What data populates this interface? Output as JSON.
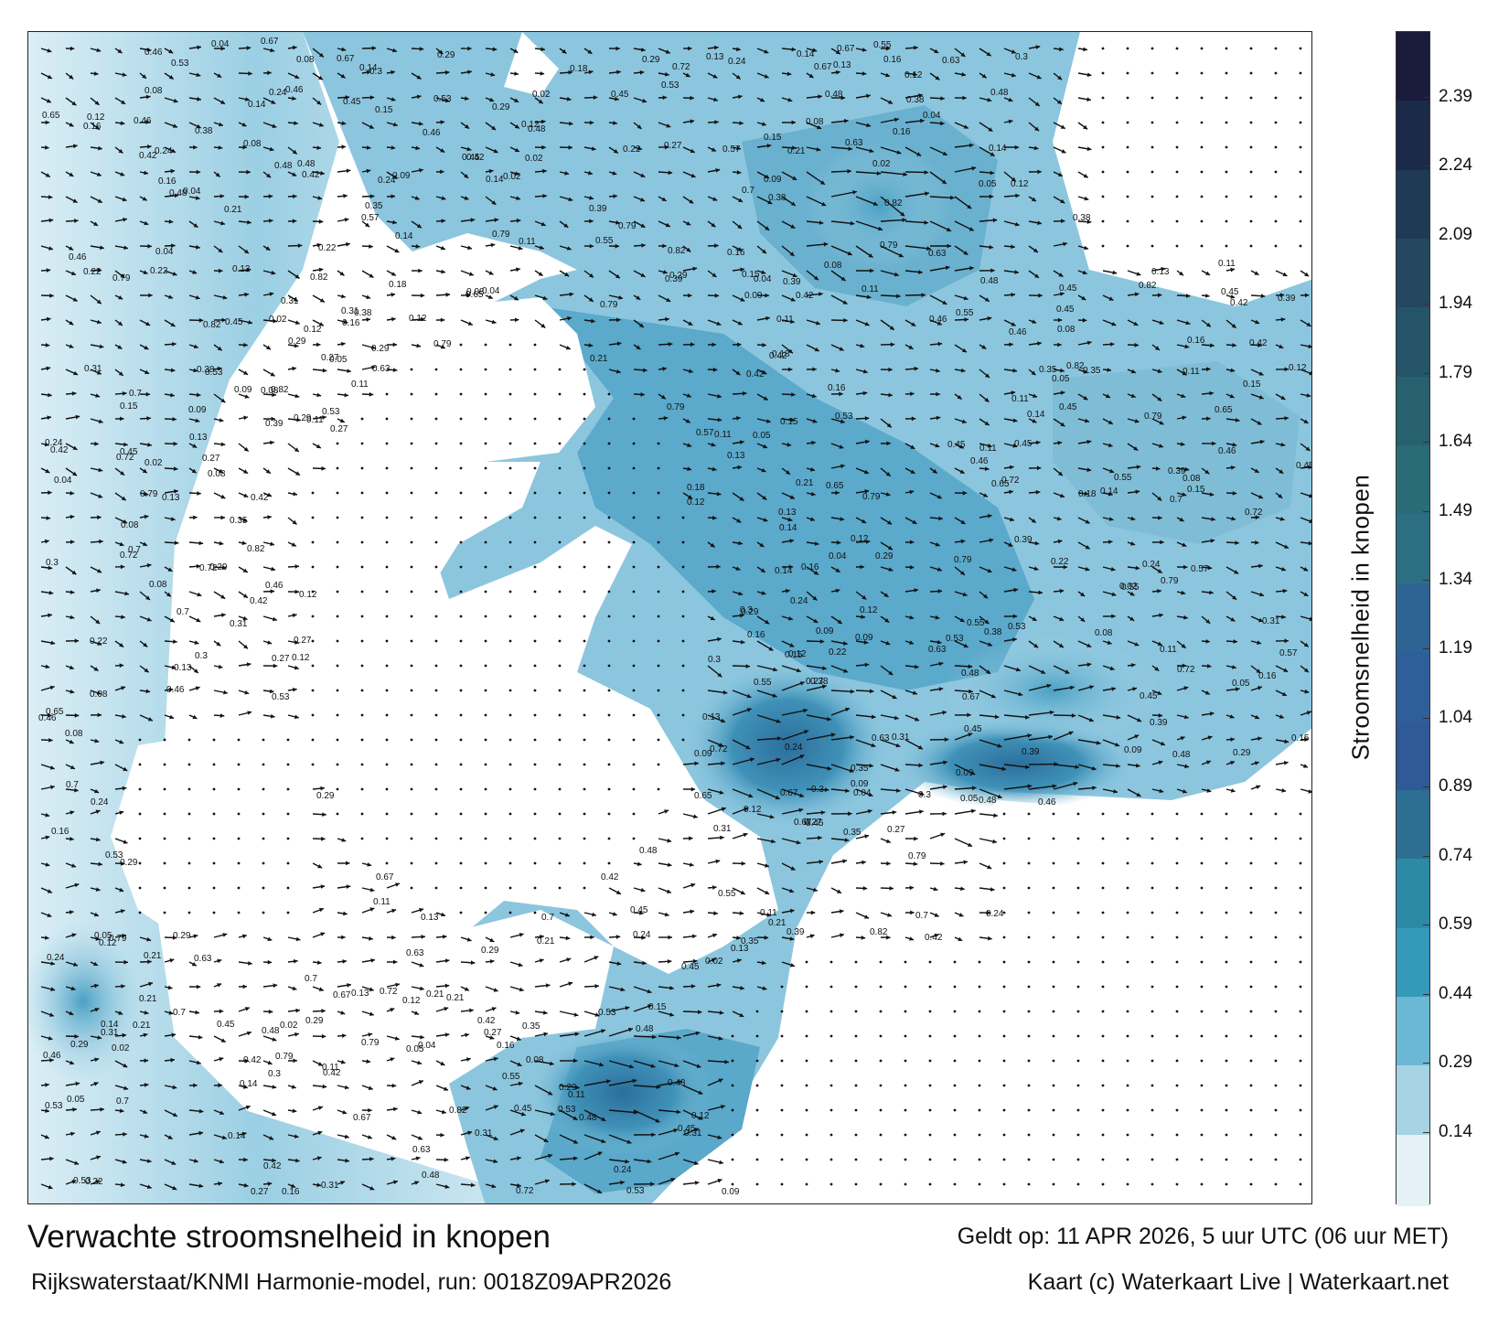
{
  "title": "Verwachte stroomsnelheid in knopen",
  "subtitle": "Rijkswaterstaat/KNMI Harmonie-model, run: 0018Z09APR2026",
  "valid_time": "Geldt op: 11 APR 2026, 5 uur UTC (06 uur MET)",
  "credit": "Kaart (c) Waterkaart Live | Waterkaart.net",
  "colorbar": {
    "title": "Stroomsnelheid in knopen",
    "ticks": [
      "2.39",
      "2.24",
      "2.09",
      "1.94",
      "1.79",
      "1.64",
      "1.49",
      "1.34",
      "1.19",
      "1.04",
      "0.89",
      "0.74",
      "0.59",
      "0.44",
      "0.29",
      "0.14"
    ],
    "colors_top_to_bottom": [
      "#1a1a3a",
      "#1c2a4a",
      "#1f3a55",
      "#234860",
      "#255468",
      "#27606e",
      "#2a6b78",
      "#2c6f82",
      "#2e6494",
      "#2f5f98",
      "#2f5a95",
      "#2d6f93",
      "#2d8aa6",
      "#3599ba",
      "#6ab8d3",
      "#a7d3e4",
      "#e4f1f7"
    ]
  },
  "map": {
    "sea_color_low": "#e8f3f8",
    "sea_color_mid": "#5fb0d0",
    "sea_color_high": "#2e6fa0",
    "land_color": "#ffffff",
    "sample_labels": [
      {
        "text": "0.15",
        "v": 0.15
      },
      {
        "text": "0.21",
        "v": 0.21
      },
      {
        "text": "0.13",
        "v": 0.13
      },
      {
        "text": "0.14",
        "v": 0.14
      },
      {
        "text": "0.12",
        "v": 0.12
      },
      {
        "text": "0.04",
        "v": 0.04
      },
      {
        "text": "0.05",
        "v": 0.05
      },
      {
        "text": "0.16",
        "v": 0.16
      },
      {
        "text": "0.27",
        "v": 0.27
      },
      {
        "text": "0.29",
        "v": 0.29
      },
      {
        "text": "0.31",
        "v": 0.31
      },
      {
        "text": "0.35",
        "v": 0.35
      },
      {
        "text": "0.46",
        "v": 0.46
      },
      {
        "text": "0.55",
        "v": 0.55
      },
      {
        "text": "0.63",
        "v": 0.63
      },
      {
        "text": "0.82",
        "v": 0.82
      },
      {
        "text": "0.79",
        "v": 0.79
      },
      {
        "text": "0.65",
        "v": 0.65
      },
      {
        "text": "0.57",
        "v": 0.57
      },
      {
        "text": "0.7",
        "v": 0.7
      },
      {
        "text": "0.48",
        "v": 0.48
      },
      {
        "text": "0.42",
        "v": 0.42
      },
      {
        "text": "0.39",
        "v": 0.39
      },
      {
        "text": "0.3",
        "v": 0.3
      },
      {
        "text": "0.24",
        "v": 0.24
      },
      {
        "text": "0.18",
        "v": 0.18
      },
      {
        "text": "0.09",
        "v": 0.09
      },
      {
        "text": "0.02",
        "v": 0.02
      },
      {
        "text": "0.67",
        "v": 0.67
      },
      {
        "text": "0.72",
        "v": 0.72
      },
      {
        "text": "0.45",
        "v": 0.45
      },
      {
        "text": "0.53",
        "v": 0.53
      },
      {
        "text": "0.11",
        "v": 0.11
      },
      {
        "text": "0.22",
        "v": 0.22
      },
      {
        "text": "0.38",
        "v": 0.38
      },
      {
        "text": "0.08",
        "v": 0.08
      }
    ]
  }
}
